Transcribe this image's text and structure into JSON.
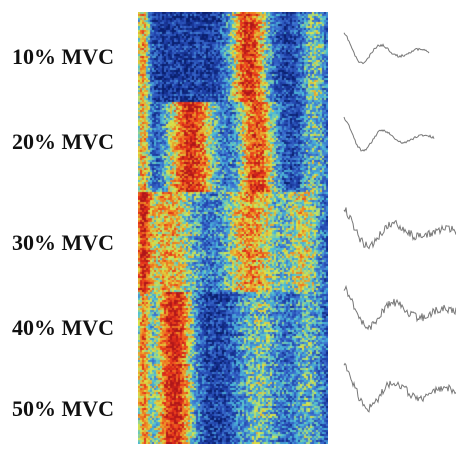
{
  "figure": {
    "levels": [
      {
        "label": "10% MVC"
      },
      {
        "label": "20% MVC"
      },
      {
        "label": "30% MVC"
      },
      {
        "label": "40% MVC"
      },
      {
        "label": "50% MVC"
      }
    ],
    "heatmap_colormap": [
      "#0a1f6e",
      "#1f3fa8",
      "#3b6fd0",
      "#4ec0d8",
      "#d8e84a",
      "#f08a24",
      "#e8331c",
      "#b0161a"
    ],
    "trace_color": "#777777"
  }
}
